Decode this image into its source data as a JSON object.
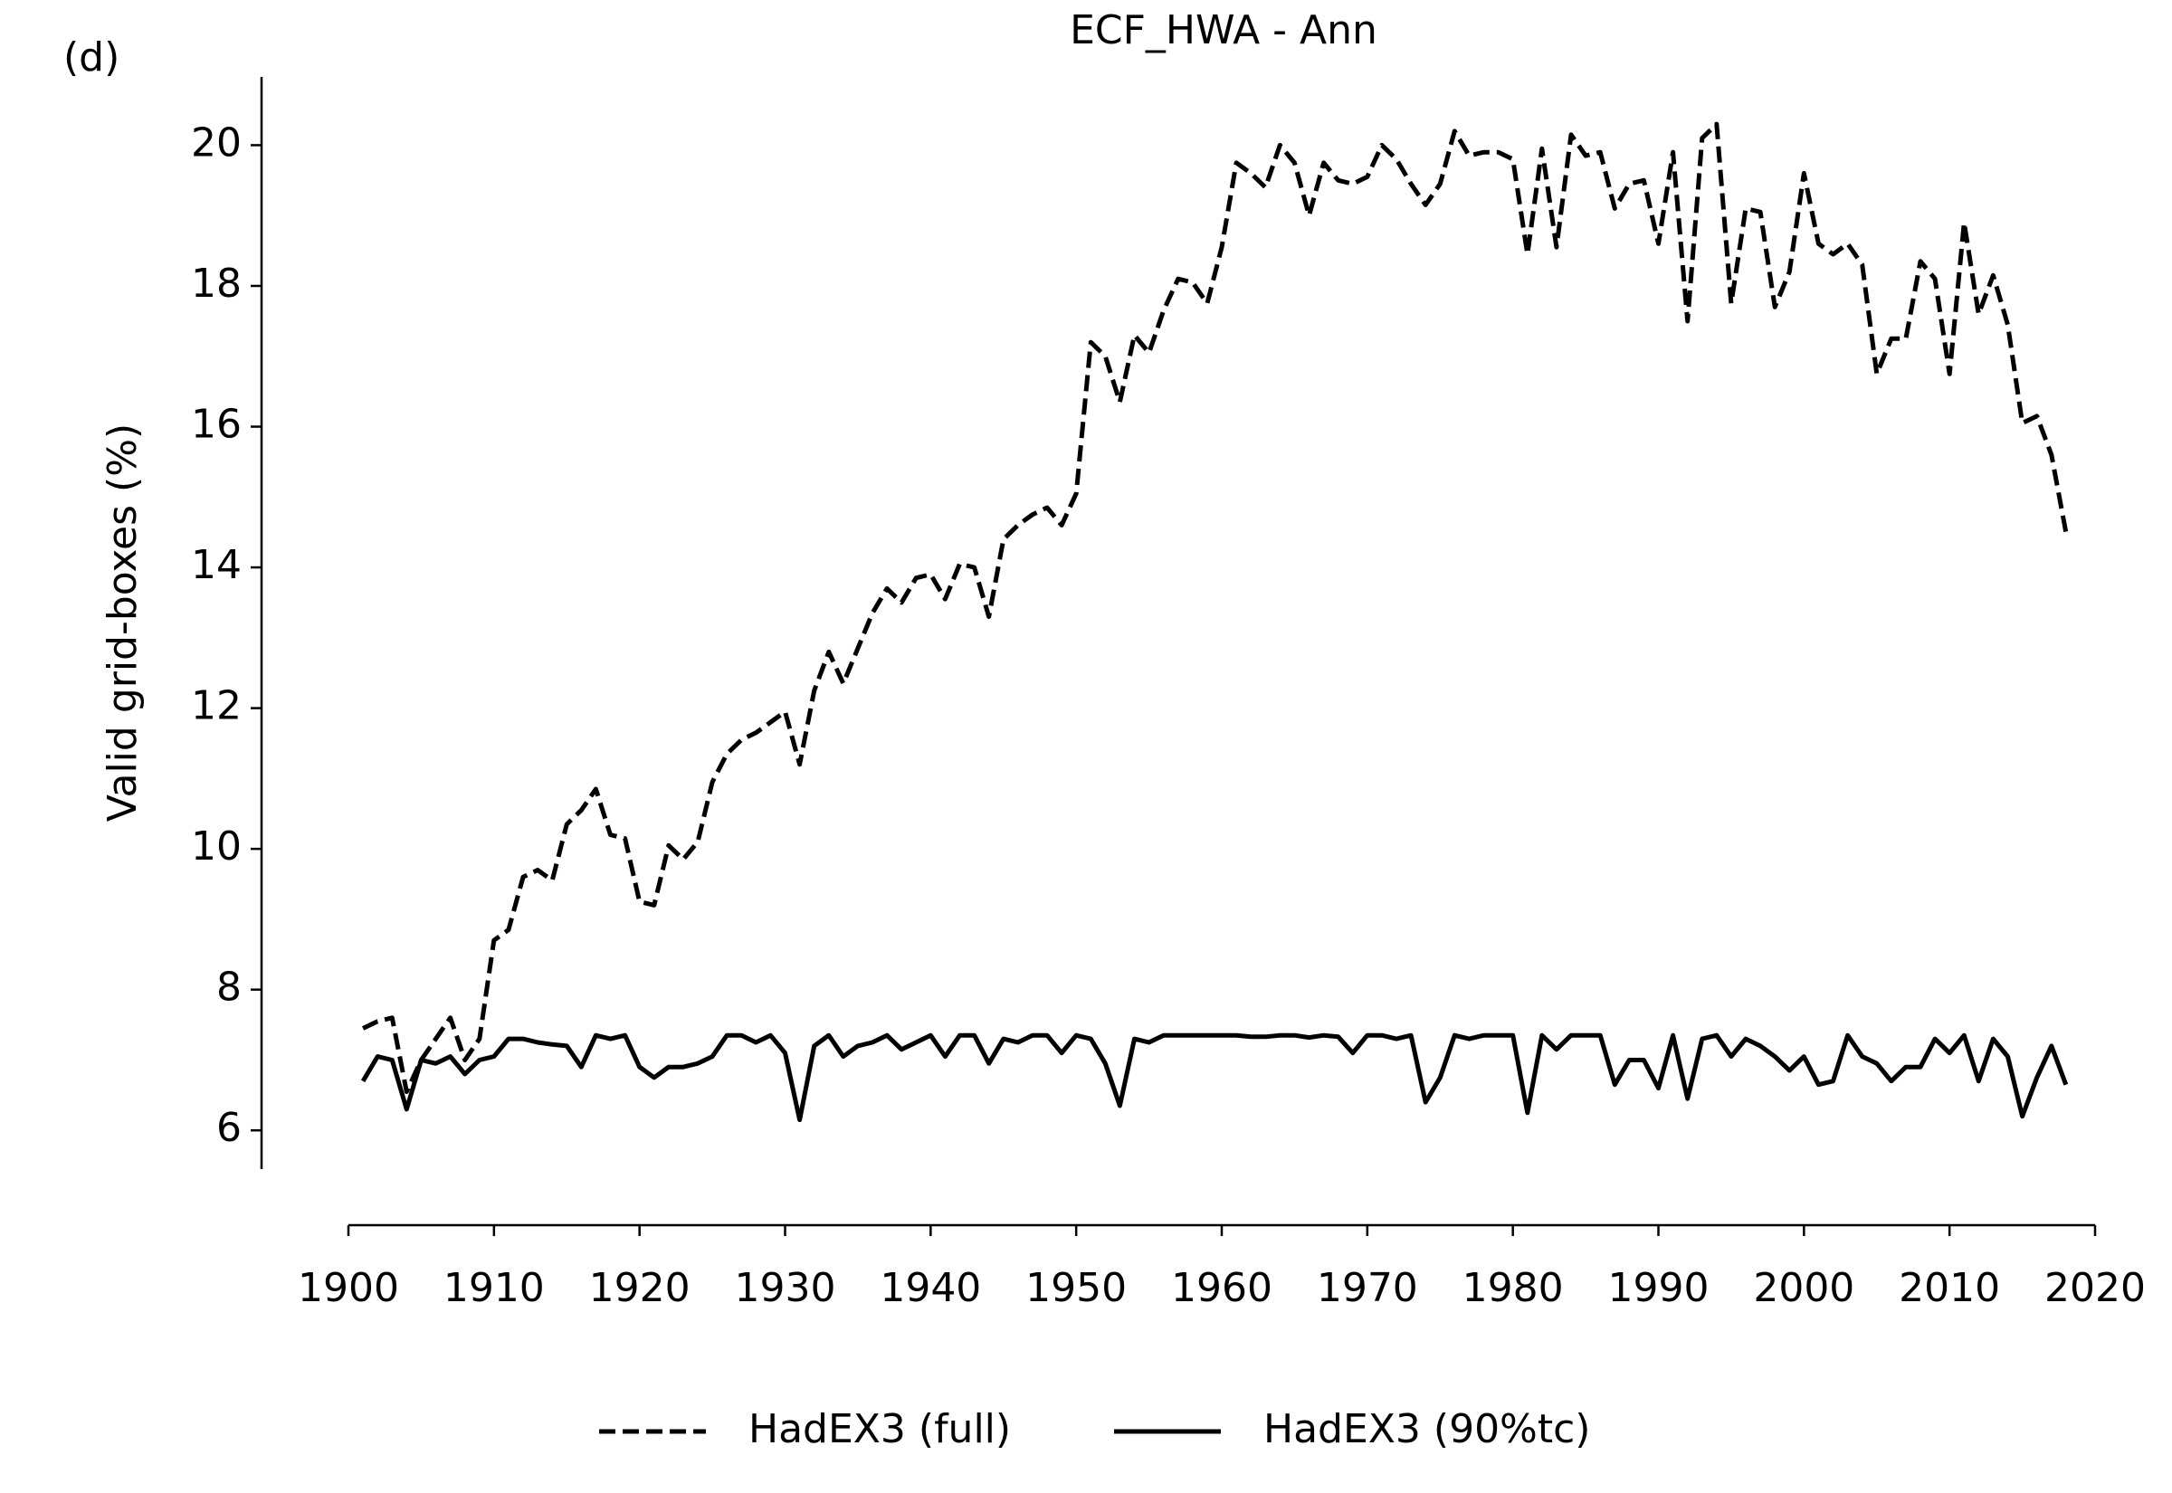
{
  "chart_data": {
    "type": "line",
    "title": "ECF_HWA - Ann",
    "panel_label": "(d)",
    "ylabel": "Valid grid-boxes (%)",
    "x": [
      1901,
      1902,
      1903,
      1904,
      1905,
      1906,
      1907,
      1908,
      1909,
      1910,
      1911,
      1912,
      1913,
      1914,
      1915,
      1916,
      1917,
      1918,
      1919,
      1920,
      1921,
      1922,
      1923,
      1924,
      1925,
      1926,
      1927,
      1928,
      1929,
      1930,
      1931,
      1932,
      1933,
      1934,
      1935,
      1936,
      1937,
      1938,
      1939,
      1940,
      1941,
      1942,
      1943,
      1944,
      1945,
      1946,
      1947,
      1948,
      1949,
      1950,
      1951,
      1952,
      1953,
      1954,
      1955,
      1956,
      1957,
      1958,
      1959,
      1960,
      1961,
      1962,
      1963,
      1964,
      1965,
      1966,
      1967,
      1968,
      1969,
      1970,
      1971,
      1972,
      1973,
      1974,
      1975,
      1976,
      1977,
      1978,
      1979,
      1980,
      1981,
      1982,
      1983,
      1984,
      1985,
      1986,
      1987,
      1988,
      1989,
      1990,
      1991,
      1992,
      1993,
      1994,
      1995,
      1996,
      1997,
      1998,
      1999,
      2000,
      2001,
      2002,
      2003,
      2004,
      2005,
      2006,
      2007,
      2008,
      2009,
      2010,
      2011,
      2012,
      2013,
      2014,
      2015,
      2016,
      2017,
      2018
    ],
    "series": [
      {
        "name": "HadEX3 (full)",
        "color": "#000000",
        "linestyle": "dashed",
        "values": [
          7.45,
          7.55,
          7.6,
          6.55,
          7.0,
          7.3,
          7.6,
          7.0,
          7.3,
          8.7,
          8.85,
          9.6,
          9.7,
          9.55,
          10.35,
          10.55,
          10.85,
          10.2,
          10.15,
          9.25,
          9.2,
          10.05,
          9.85,
          10.1,
          10.95,
          11.35,
          11.55,
          11.65,
          11.8,
          11.95,
          11.2,
          12.25,
          12.8,
          12.35,
          12.85,
          13.35,
          13.7,
          13.5,
          13.85,
          13.9,
          13.55,
          14.05,
          14.0,
          13.3,
          14.4,
          14.6,
          14.75,
          14.85,
          14.6,
          15.05,
          17.2,
          17.0,
          16.35,
          17.3,
          17.05,
          17.65,
          18.1,
          18.05,
          17.75,
          18.55,
          19.75,
          19.6,
          19.4,
          20.0,
          19.75,
          19.0,
          19.75,
          19.5,
          19.45,
          19.55,
          20.0,
          19.8,
          19.45,
          19.15,
          19.45,
          20.2,
          19.85,
          19.9,
          19.9,
          19.8,
          18.45,
          19.95,
          18.55,
          20.15,
          19.85,
          19.9,
          19.1,
          19.45,
          19.5,
          18.6,
          19.9,
          17.5,
          20.1,
          20.3,
          17.75,
          19.1,
          19.05,
          17.7,
          18.2,
          19.6,
          18.6,
          18.45,
          18.6,
          18.3,
          16.75,
          17.25,
          17.25,
          18.35,
          18.1,
          16.75,
          18.9,
          17.6,
          18.15,
          17.45,
          16.05,
          16.15,
          15.6,
          14.5
        ]
      },
      {
        "name": "HadEX3 (90%tc)",
        "color": "#000000",
        "linestyle": "solid",
        "values": [
          6.7,
          7.05,
          7.0,
          6.3,
          7.0,
          6.95,
          7.05,
          6.8,
          7.0,
          7.05,
          7.3,
          7.3,
          7.25,
          7.22,
          7.2,
          6.9,
          7.35,
          7.3,
          7.35,
          6.9,
          6.75,
          6.9,
          6.9,
          6.95,
          7.05,
          7.35,
          7.35,
          7.25,
          7.35,
          7.1,
          6.15,
          7.2,
          7.35,
          7.05,
          7.2,
          7.25,
          7.35,
          7.15,
          7.25,
          7.35,
          7.05,
          7.35,
          7.35,
          6.95,
          7.3,
          7.25,
          7.35,
          7.35,
          7.1,
          7.35,
          7.3,
          6.95,
          6.35,
          7.3,
          7.25,
          7.35,
          7.35,
          7.35,
          7.35,
          7.35,
          7.35,
          7.33,
          7.33,
          7.35,
          7.35,
          7.32,
          7.35,
          7.33,
          7.1,
          7.35,
          7.35,
          7.3,
          7.35,
          6.4,
          6.75,
          7.35,
          7.3,
          7.35,
          7.35,
          7.35,
          6.25,
          7.35,
          7.15,
          7.35,
          7.35,
          7.35,
          6.65,
          7.0,
          7.0,
          6.6,
          7.35,
          6.45,
          7.3,
          7.35,
          7.05,
          7.3,
          7.2,
          7.05,
          6.85,
          7.05,
          6.65,
          6.7,
          7.35,
          7.05,
          6.95,
          6.7,
          6.9,
          6.9,
          7.3,
          7.1,
          7.35,
          6.7,
          7.3,
          7.05,
          6.2,
          6.75,
          7.2,
          6.65
        ]
      }
    ],
    "xlim": [
      1900,
      2020
    ],
    "xticks": [
      1900,
      1910,
      1920,
      1930,
      1940,
      1950,
      1960,
      1970,
      1980,
      1990,
      2000,
      2010,
      2020
    ],
    "ylim": [
      5.45,
      20.97
    ],
    "yticks": [
      6,
      8,
      10,
      12,
      14,
      16,
      18,
      20
    ],
    "grid": false,
    "legend": "bottom"
  }
}
